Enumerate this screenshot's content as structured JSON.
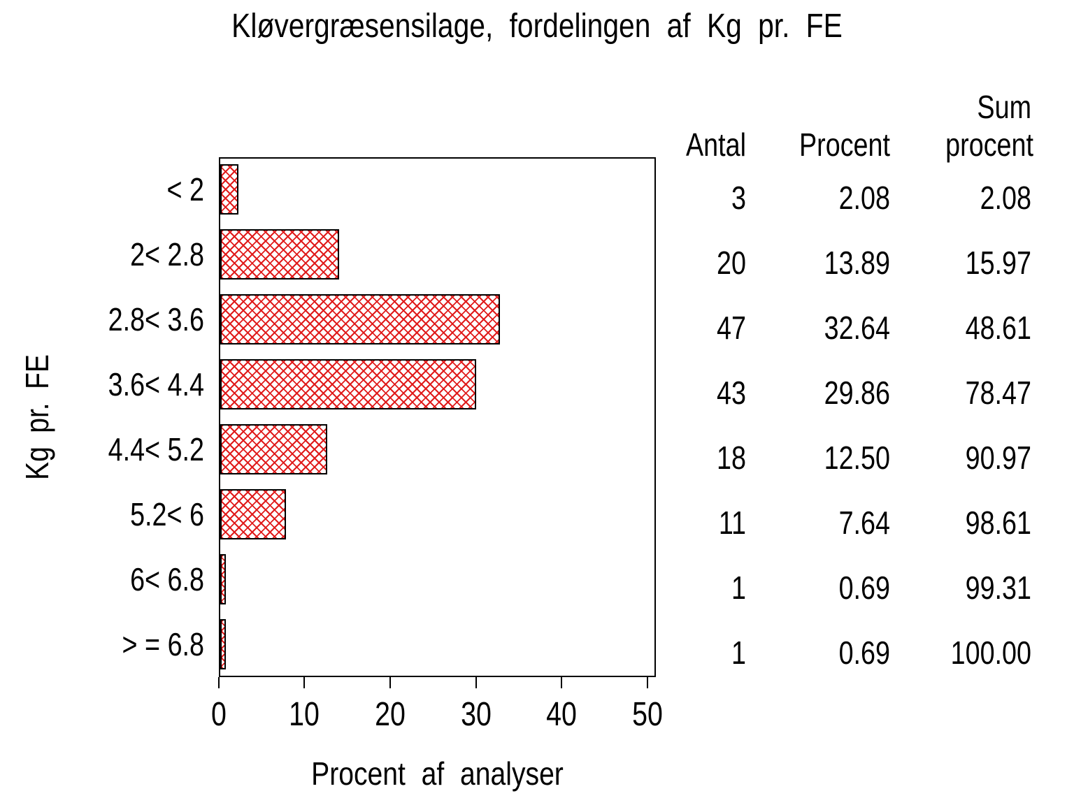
{
  "colors": {
    "bar_hatch": "#e01b1b",
    "bar_border": "#000000",
    "axis": "#000000",
    "text": "#000000",
    "background": "#ffffff"
  },
  "chart_data": {
    "type": "bar",
    "orientation": "horizontal",
    "title": "Kløvergræsensilage, fordelingen af Kg pr. FE",
    "xlabel": "Procent af analyser",
    "ylabel": "Kg pr. FE",
    "categories": [
      "< 2",
      "2< 2.8",
      "2.8< 3.6",
      "3.6< 4.4",
      "4.4< 5.2",
      "5.2< 6",
      "6< 6.8",
      "> = 6.8"
    ],
    "series": [
      {
        "name": "Procent af analyser",
        "values": [
          2.08,
          13.89,
          32.64,
          29.86,
          12.5,
          7.64,
          0.69,
          0.69
        ]
      },
      {
        "name": "Antal",
        "values": [
          3,
          20,
          47,
          43,
          18,
          11,
          1,
          1
        ]
      },
      {
        "name": "Sum procent",
        "values": [
          2.08,
          15.97,
          48.61,
          78.47,
          90.97,
          98.61,
          99.31,
          100.0
        ]
      }
    ],
    "xlim": [
      0,
      50
    ],
    "xticks": [
      "0",
      "10",
      "20",
      "30",
      "40",
      "50"
    ],
    "grid": false,
    "legend": "none",
    "bar_style": "red diagonal crosshatch fill with black outline on white"
  },
  "table": {
    "headers": {
      "antal": "Antal",
      "procent": "Procent",
      "sum_line1": "Sum",
      "sum_line2": "procent"
    },
    "rows": [
      {
        "antal": "3",
        "procent": "2.08",
        "sum": "2.08"
      },
      {
        "antal": "20",
        "procent": "13.89",
        "sum": "15.97"
      },
      {
        "antal": "47",
        "procent": "32.64",
        "sum": "48.61"
      },
      {
        "antal": "43",
        "procent": "29.86",
        "sum": "78.47"
      },
      {
        "antal": "18",
        "procent": "12.50",
        "sum": "90.97"
      },
      {
        "antal": "11",
        "procent": "7.64",
        "sum": "98.61"
      },
      {
        "antal": "1",
        "procent": "0.69",
        "sum": "99.31"
      },
      {
        "antal": "1",
        "procent": "0.69",
        "sum": "100.00"
      }
    ]
  }
}
